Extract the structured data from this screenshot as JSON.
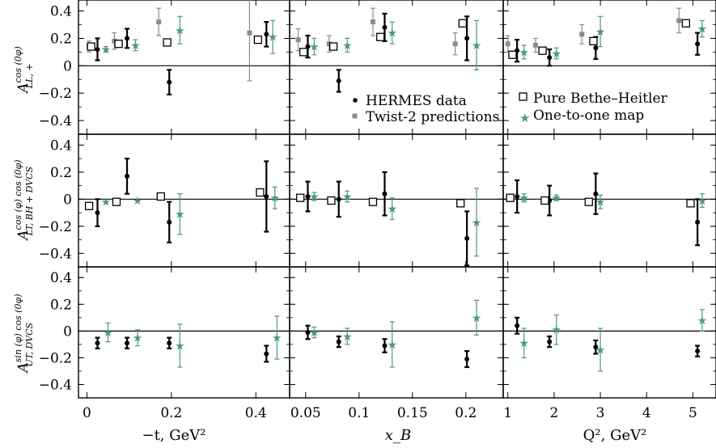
{
  "colors": {
    "hermes": "#000000",
    "twist2": "#8c8c8c",
    "bh": "#000000",
    "map": "#4e9a72"
  },
  "legend": {
    "hermes": "HERMES data",
    "twist2": "Twist-2 predictions",
    "bh": "Pure Bethe–Heitler",
    "map": "One-to-one map"
  },
  "row_labels": [
    {
      "main": "A",
      "sup": "cos (0φ)",
      "sub": "LL, +"
    },
    {
      "main": "A",
      "sup": "cos (φ) cos (0φ)",
      "sub": "LT, BH + DVCS"
    },
    {
      "main": "A",
      "sup": "sin (φ) cos (0φ)",
      "sub": "UT, DVCS"
    }
  ],
  "col_labels": [
    "−t, GeV²",
    "x_B",
    "Q², GeV²"
  ],
  "chart_data": [
    {
      "type": "scatter",
      "title": "",
      "ylim": [
        -0.5,
        0.48
      ],
      "yticks": [
        -0.4,
        -0.2,
        0,
        0.2,
        0.4
      ],
      "panels": [
        {
          "xlim": [
            -0.02,
            0.48
          ],
          "xticks": [
            0,
            0.2,
            0.4
          ],
          "xticklabels": [
            "0",
            "0.2",
            "0.4"
          ],
          "series": [
            {
              "name": "HERMES data",
              "kind": "hermes",
              "points": [
                [
                  0.025,
                  0.12,
                  0.08
                ],
                [
                  0.095,
                  0.2,
                  0.07
                ],
                [
                  0.195,
                  -0.12,
                  0.09
                ],
                [
                  0.425,
                  0.23,
                  0.09
                ]
              ]
            },
            {
              "name": "Twist-2 predictions",
              "kind": "twist2",
              "points": [
                [
                  0.005,
                  0.14,
                  0.04
                ],
                [
                  0.065,
                  0.18,
                  0.06
                ],
                [
                  0.17,
                  0.32,
                  0.1
                ],
                [
                  0.385,
                  0.24,
                  0.35
                ]
              ]
            },
            {
              "name": "Pure Bethe–Heitler",
              "kind": "bh",
              "points": [
                [
                  0.01,
                  0.14
                ],
                [
                  0.075,
                  0.16
                ],
                [
                  0.19,
                  0.17
                ],
                [
                  0.405,
                  0.19
                ]
              ]
            },
            {
              "name": "One-to-one map",
              "kind": "map",
              "points": [
                [
                  0.045,
                  0.12,
                  0.02
                ],
                [
                  0.115,
                  0.15,
                  0.04
                ],
                [
                  0.22,
                  0.26,
                  0.1
                ],
                [
                  0.44,
                  0.21,
                  0.12
                ]
              ]
            }
          ]
        },
        {
          "xlim": [
            0.035,
            0.235
          ],
          "xticks": [
            0.05,
            0.1,
            0.15,
            0.2
          ],
          "xticklabels": [
            "0.05",
            "0.1",
            "0.15",
            "0.2"
          ],
          "series": [
            {
              "name": "HERMES data",
              "kind": "hermes",
              "points": [
                [
                  0.052,
                  0.14,
                  0.08
                ],
                [
                  0.081,
                  -0.11,
                  0.08
                ],
                [
                  0.124,
                  0.28,
                  0.1
                ],
                [
                  0.201,
                  0.2,
                  0.16
                ]
              ]
            },
            {
              "name": "Twist-2 predictions",
              "kind": "twist2",
              "points": [
                [
                  0.043,
                  0.19,
                  0.08
                ],
                [
                  0.072,
                  0.16,
                  0.06
                ],
                [
                  0.113,
                  0.32,
                  0.1
                ],
                [
                  0.19,
                  0.16,
                  0.08
                ]
              ]
            },
            {
              "name": "Pure Bethe–Heitler",
              "kind": "bh",
              "points": [
                [
                  0.048,
                  0.1
                ],
                [
                  0.076,
                  0.14
                ],
                [
                  0.12,
                  0.21
                ],
                [
                  0.197,
                  0.31
                ]
              ]
            },
            {
              "name": "One-to-one map",
              "kind": "map",
              "points": [
                [
                  0.058,
                  0.14,
                  0.06
                ],
                [
                  0.089,
                  0.15,
                  0.05
                ],
                [
                  0.131,
                  0.24,
                  0.08
                ],
                [
                  0.21,
                  0.15,
                  0.18
                ]
              ]
            }
          ]
        },
        {
          "xlim": [
            0.9,
            5.5
          ],
          "xticks": [
            1,
            2,
            3,
            4,
            5
          ],
          "xticklabels": [
            "1",
            "2",
            "3",
            "4",
            "5"
          ],
          "series": [
            {
              "name": "HERMES data",
              "kind": "hermes",
              "points": [
                [
                  1.2,
                  0.11,
                  0.08
                ],
                [
                  1.9,
                  0.06,
                  0.06
                ],
                [
                  2.9,
                  0.13,
                  0.08
                ],
                [
                  5.1,
                  0.16,
                  0.08
                ]
              ]
            },
            {
              "name": "Twist-2 predictions",
              "kind": "twist2",
              "points": [
                [
                  1.0,
                  0.16,
                  0.06
                ],
                [
                  1.6,
                  0.15,
                  0.05
                ],
                [
                  2.6,
                  0.23,
                  0.07
                ],
                [
                  4.7,
                  0.33,
                  0.09
                ]
              ]
            },
            {
              "name": "Pure Bethe–Heitler",
              "kind": "bh",
              "points": [
                [
                  1.1,
                  0.08
                ],
                [
                  1.75,
                  0.11
                ],
                [
                  2.85,
                  0.18
                ],
                [
                  4.85,
                  0.31
                ]
              ]
            },
            {
              "name": "One-to-one map",
              "kind": "map",
              "points": [
                [
                  1.35,
                  0.1,
                  0.05
                ],
                [
                  2.05,
                  0.09,
                  0.04
                ],
                [
                  3.0,
                  0.25,
                  0.11
                ],
                [
                  5.2,
                  0.27,
                  0.06
                ]
              ]
            }
          ]
        }
      ]
    },
    {
      "type": "scatter",
      "title": "",
      "ylim": [
        -0.5,
        0.48
      ],
      "yticks": [
        -0.4,
        -0.2,
        0,
        0.2,
        0.4
      ],
      "panels": [
        {
          "xlim": [
            -0.02,
            0.48
          ],
          "xticks": [
            0,
            0.2,
            0.4
          ],
          "xticklabels": [
            "0",
            "0.2",
            "0.4"
          ],
          "series": [
            {
              "name": "HERMES data",
              "kind": "hermes",
              "points": [
                [
                  0.025,
                  -0.1,
                  0.1
                ],
                [
                  0.095,
                  0.17,
                  0.13
                ],
                [
                  0.195,
                  -0.17,
                  0.15
                ],
                [
                  0.425,
                  0.02,
                  0.26
                ]
              ]
            },
            {
              "name": "Pure Bethe–Heitler",
              "kind": "bh",
              "points": [
                [
                  0.005,
                  -0.05
                ],
                [
                  0.07,
                  -0.02
                ],
                [
                  0.175,
                  0.02
                ],
                [
                  0.41,
                  0.05
                ]
              ]
            },
            {
              "name": "One-to-one map",
              "kind": "map",
              "points": [
                [
                  0.045,
                  -0.02,
                  0.0
                ],
                [
                  0.12,
                  -0.01,
                  0.0
                ],
                [
                  0.22,
                  -0.11,
                  0.15
                ],
                [
                  0.445,
                  0.01,
                  0.08
                ]
              ]
            }
          ]
        },
        {
          "xlim": [
            0.035,
            0.235
          ],
          "xticks": [
            0.05,
            0.1,
            0.15,
            0.2
          ],
          "xticklabels": [
            "0.05",
            "0.1",
            "0.15",
            "0.2"
          ],
          "series": [
            {
              "name": "HERMES data",
              "kind": "hermes",
              "points": [
                [
                  0.052,
                  0.02,
                  0.11
                ],
                [
                  0.081,
                  0.0,
                  0.13
                ],
                [
                  0.124,
                  0.04,
                  0.16
                ],
                [
                  0.201,
                  -0.29,
                  0.2
                ]
              ]
            },
            {
              "name": "Pure Bethe–Heitler",
              "kind": "bh",
              "points": [
                [
                  0.045,
                  0.01
                ],
                [
                  0.074,
                  -0.01
                ],
                [
                  0.113,
                  -0.02
                ],
                [
                  0.195,
                  -0.03
                ]
              ]
            },
            {
              "name": "One-to-one map",
              "kind": "map",
              "points": [
                [
                  0.058,
                  0.02,
                  0.03
                ],
                [
                  0.089,
                  0.02,
                  0.04
                ],
                [
                  0.131,
                  -0.07,
                  0.08
                ],
                [
                  0.21,
                  -0.17,
                  0.25
                ]
              ]
            }
          ]
        },
        {
          "xlim": [
            0.9,
            5.5
          ],
          "xticks": [
            1,
            2,
            3,
            4,
            5
          ],
          "xticklabels": [
            "1",
            "2",
            "3",
            "4",
            "5"
          ],
          "series": [
            {
              "name": "HERMES data",
              "kind": "hermes",
              "points": [
                [
                  1.2,
                  0.02,
                  0.12
                ],
                [
                  1.9,
                  -0.01,
                  0.11
                ],
                [
                  2.9,
                  0.04,
                  0.15
                ],
                [
                  5.1,
                  -0.17,
                  0.17
                ]
              ]
            },
            {
              "name": "Pure Bethe–Heitler",
              "kind": "bh",
              "points": [
                [
                  1.05,
                  0.01
                ],
                [
                  1.8,
                  -0.01
                ],
                [
                  2.75,
                  -0.02
                ],
                [
                  4.95,
                  -0.03
                ]
              ]
            },
            {
              "name": "One-to-one map",
              "kind": "map",
              "points": [
                [
                  1.35,
                  0.01,
                  0.03
                ],
                [
                  2.05,
                  0.01,
                  0.02
                ],
                [
                  3.0,
                  -0.02,
                  0.05
                ],
                [
                  5.2,
                  -0.01,
                  0.05
                ]
              ]
            }
          ]
        }
      ]
    },
    {
      "type": "scatter",
      "title": "",
      "ylim": [
        -0.5,
        0.48
      ],
      "yticks": [
        -0.4,
        -0.2,
        0,
        0.2,
        0.4
      ],
      "panels": [
        {
          "xlim": [
            -0.02,
            0.48
          ],
          "xticks": [
            0,
            0.2,
            0.4
          ],
          "xticklabels": [
            "0",
            "0.2",
            "0.4"
          ],
          "series": [
            {
              "name": "HERMES data",
              "kind": "hermes",
              "points": [
                [
                  0.025,
                  -0.09,
                  0.04
                ],
                [
                  0.095,
                  -0.09,
                  0.04
                ],
                [
                  0.195,
                  -0.09,
                  0.04
                ],
                [
                  0.425,
                  -0.17,
                  0.06
                ]
              ]
            },
            {
              "name": "One-to-one map",
              "kind": "map",
              "points": [
                [
                  0.05,
                  -0.01,
                  0.07
                ],
                [
                  0.12,
                  -0.05,
                  0.06
                ],
                [
                  0.22,
                  -0.11,
                  0.16
                ],
                [
                  0.45,
                  -0.05,
                  0.16
                ]
              ]
            }
          ]
        },
        {
          "xlim": [
            0.035,
            0.235
          ],
          "xticks": [
            0.05,
            0.1,
            0.15,
            0.2
          ],
          "xticklabels": [
            "0.05",
            "0.1",
            "0.15",
            "0.2"
          ],
          "series": [
            {
              "name": "HERMES data",
              "kind": "hermes",
              "points": [
                [
                  0.052,
                  -0.01,
                  0.05
                ],
                [
                  0.081,
                  -0.08,
                  0.04
                ],
                [
                  0.124,
                  -0.11,
                  0.05
                ],
                [
                  0.201,
                  -0.21,
                  0.06
                ]
              ]
            },
            {
              "name": "One-to-one map",
              "kind": "map",
              "points": [
                [
                  0.058,
                  -0.01,
                  0.04
                ],
                [
                  0.089,
                  -0.04,
                  0.06
                ],
                [
                  0.131,
                  -0.1,
                  0.17
                ],
                [
                  0.21,
                  0.1,
                  0.13
                ]
              ]
            }
          ]
        },
        {
          "xlim": [
            0.9,
            5.5
          ],
          "xticks": [
            1,
            2,
            3,
            4,
            5
          ],
          "xticklabels": [
            "1",
            "2",
            "3",
            "4",
            "5"
          ],
          "series": [
            {
              "name": "HERMES data",
              "kind": "hermes",
              "points": [
                [
                  1.2,
                  0.04,
                  0.06
                ],
                [
                  1.9,
                  -0.08,
                  0.04
                ],
                [
                  2.9,
                  -0.12,
                  0.05
                ],
                [
                  5.1,
                  -0.15,
                  0.04
                ]
              ]
            },
            {
              "name": "One-to-one map",
              "kind": "map",
              "points": [
                [
                  1.35,
                  -0.09,
                  0.11
                ],
                [
                  2.05,
                  0.01,
                  0.11
                ],
                [
                  3.0,
                  -0.14,
                  0.16
                ],
                [
                  5.2,
                  0.08,
                  0.08
                ]
              ]
            }
          ]
        }
      ]
    }
  ]
}
